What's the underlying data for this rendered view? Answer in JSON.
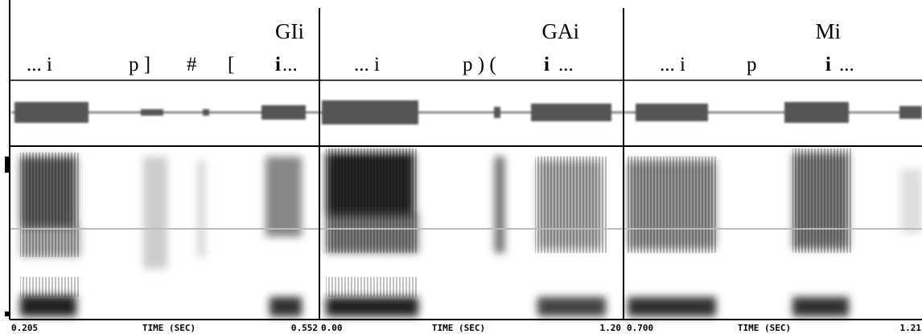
{
  "panels": [
    {
      "title": "GIi",
      "transcription": [
        "... i",
        "p ]",
        "#",
        "[",
        "i",
        "..."
      ],
      "time_axis": [
        "0.205",
        "TIME (SEC)",
        "0.552"
      ]
    },
    {
      "title": "GAi",
      "transcription": [
        "... i",
        "p ) (",
        "i",
        "..."
      ],
      "time_axis": [
        "0.00",
        "TIME (SEC)",
        "1.20"
      ]
    },
    {
      "title": "Mi",
      "transcription": [
        "... i",
        "p",
        "i",
        "..."
      ],
      "time_axis": [
        "0.700",
        "TIME (SEC)",
        "1.21"
      ]
    }
  ]
}
